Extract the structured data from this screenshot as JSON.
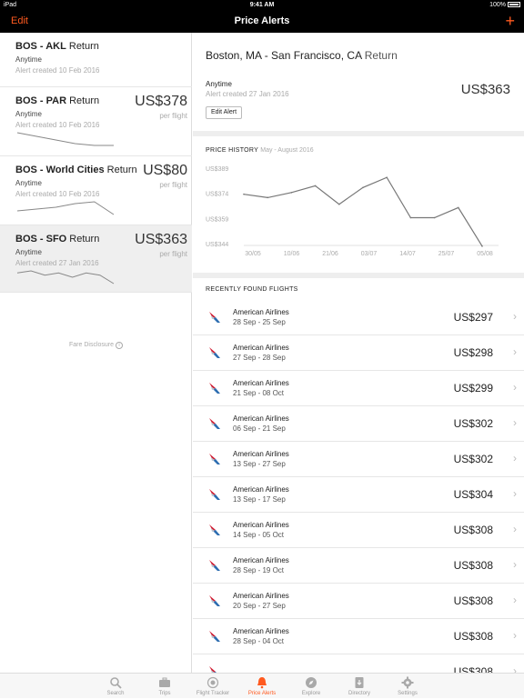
{
  "status_bar": {
    "device": "iPad",
    "time": "9:41 AM",
    "battery": "100%"
  },
  "nav": {
    "edit_label": "Edit",
    "title": "Price Alerts",
    "add_label": "+"
  },
  "alerts": [
    {
      "route": "BOS - AKL",
      "trip": "Return",
      "when": "Anytime",
      "created": "Alert created 10 Feb 2016",
      "price": "",
      "per": "",
      "trend": []
    },
    {
      "route": "BOS - PAR",
      "trip": "Return",
      "when": "Anytime",
      "created": "Alert created 10 Feb 2016",
      "price": "US$378",
      "per": "per flight",
      "trend": [
        8,
        6,
        4,
        2,
        1,
        1
      ]
    },
    {
      "route": "BOS - World Cities",
      "trip": "Return",
      "when": "Anytime",
      "created": "Alert created 10 Feb 2016",
      "price": "US$80",
      "per": "per flight",
      "trend": [
        4,
        5,
        6,
        8,
        9,
        2
      ]
    },
    {
      "route": "BOS - SFO",
      "trip": "Return",
      "when": "Anytime",
      "created": "Alert created 27 Jan 2016",
      "price": "US$363",
      "per": "per flight",
      "trend": [
        6,
        7,
        5,
        6,
        4,
        6,
        5,
        1
      ]
    }
  ],
  "fare_disclosure": "Fare Disclosure",
  "detail": {
    "route": "Boston, MA - San Francisco, CA",
    "trip": "Return",
    "when": "Anytime",
    "created": "Alert created 27 Jan 2016",
    "price": "US$363",
    "edit_button": "Edit Alert"
  },
  "price_history": {
    "title": "PRICE HISTORY",
    "range": "May - August 2016"
  },
  "chart_data": {
    "type": "line",
    "title": "PRICE HISTORY",
    "subtitle": "May - August 2016",
    "y_ticks": [
      "US$389",
      "US$374",
      "US$359",
      "US$344"
    ],
    "y_tick_values": [
      389,
      374,
      359,
      344
    ],
    "x_ticks": [
      "30/05",
      "10/06",
      "21/06",
      "03/07",
      "14/07",
      "25/07",
      "05/08"
    ],
    "ylim": [
      344,
      389
    ],
    "x": [
      0,
      1,
      2,
      3,
      4,
      5,
      6,
      7,
      8,
      9,
      10
    ],
    "values": [
      374,
      372,
      375,
      379,
      368,
      378,
      384,
      360,
      360,
      366,
      343
    ]
  },
  "recent": {
    "title": "RECENTLY FOUND FLIGHTS",
    "flights": [
      {
        "airline": "American Airlines",
        "dates": "28 Sep - 25 Sep",
        "price": "US$297"
      },
      {
        "airline": "American Airlines",
        "dates": "27 Sep - 28 Sep",
        "price": "US$298"
      },
      {
        "airline": "American Airlines",
        "dates": "21 Sep - 08 Oct",
        "price": "US$299"
      },
      {
        "airline": "American Airlines",
        "dates": "06 Sep - 21 Sep",
        "price": "US$302"
      },
      {
        "airline": "American Airlines",
        "dates": "13 Sep - 27 Sep",
        "price": "US$302"
      },
      {
        "airline": "American Airlines",
        "dates": "13 Sep - 17 Sep",
        "price": "US$304"
      },
      {
        "airline": "American Airlines",
        "dates": "14 Sep - 05 Oct",
        "price": "US$308"
      },
      {
        "airline": "American Airlines",
        "dates": "28 Sep - 19 Oct",
        "price": "US$308"
      },
      {
        "airline": "American Airlines",
        "dates": "20 Sep - 27 Sep",
        "price": "US$308"
      },
      {
        "airline": "American Airlines",
        "dates": "28 Sep - 04 Oct",
        "price": "US$308"
      },
      {
        "airline": "",
        "dates": "",
        "price": "US$308"
      }
    ]
  },
  "tabs": [
    {
      "label": "Search",
      "icon": "search-icon",
      "active": false
    },
    {
      "label": "Trips",
      "icon": "briefcase-icon",
      "active": false
    },
    {
      "label": "Flight Tracker",
      "icon": "radar-icon",
      "active": false
    },
    {
      "label": "Price Alerts",
      "icon": "bell-icon",
      "active": true
    },
    {
      "label": "Explore",
      "icon": "compass-icon",
      "active": false
    },
    {
      "label": "Directory",
      "icon": "directory-icon",
      "active": false
    },
    {
      "label": "Settings",
      "icon": "gear-icon",
      "active": false
    }
  ],
  "colors": {
    "accent": "#ff5a1f",
    "aa_red": "#d0182e",
    "aa_blue": "#2b6cb0"
  }
}
